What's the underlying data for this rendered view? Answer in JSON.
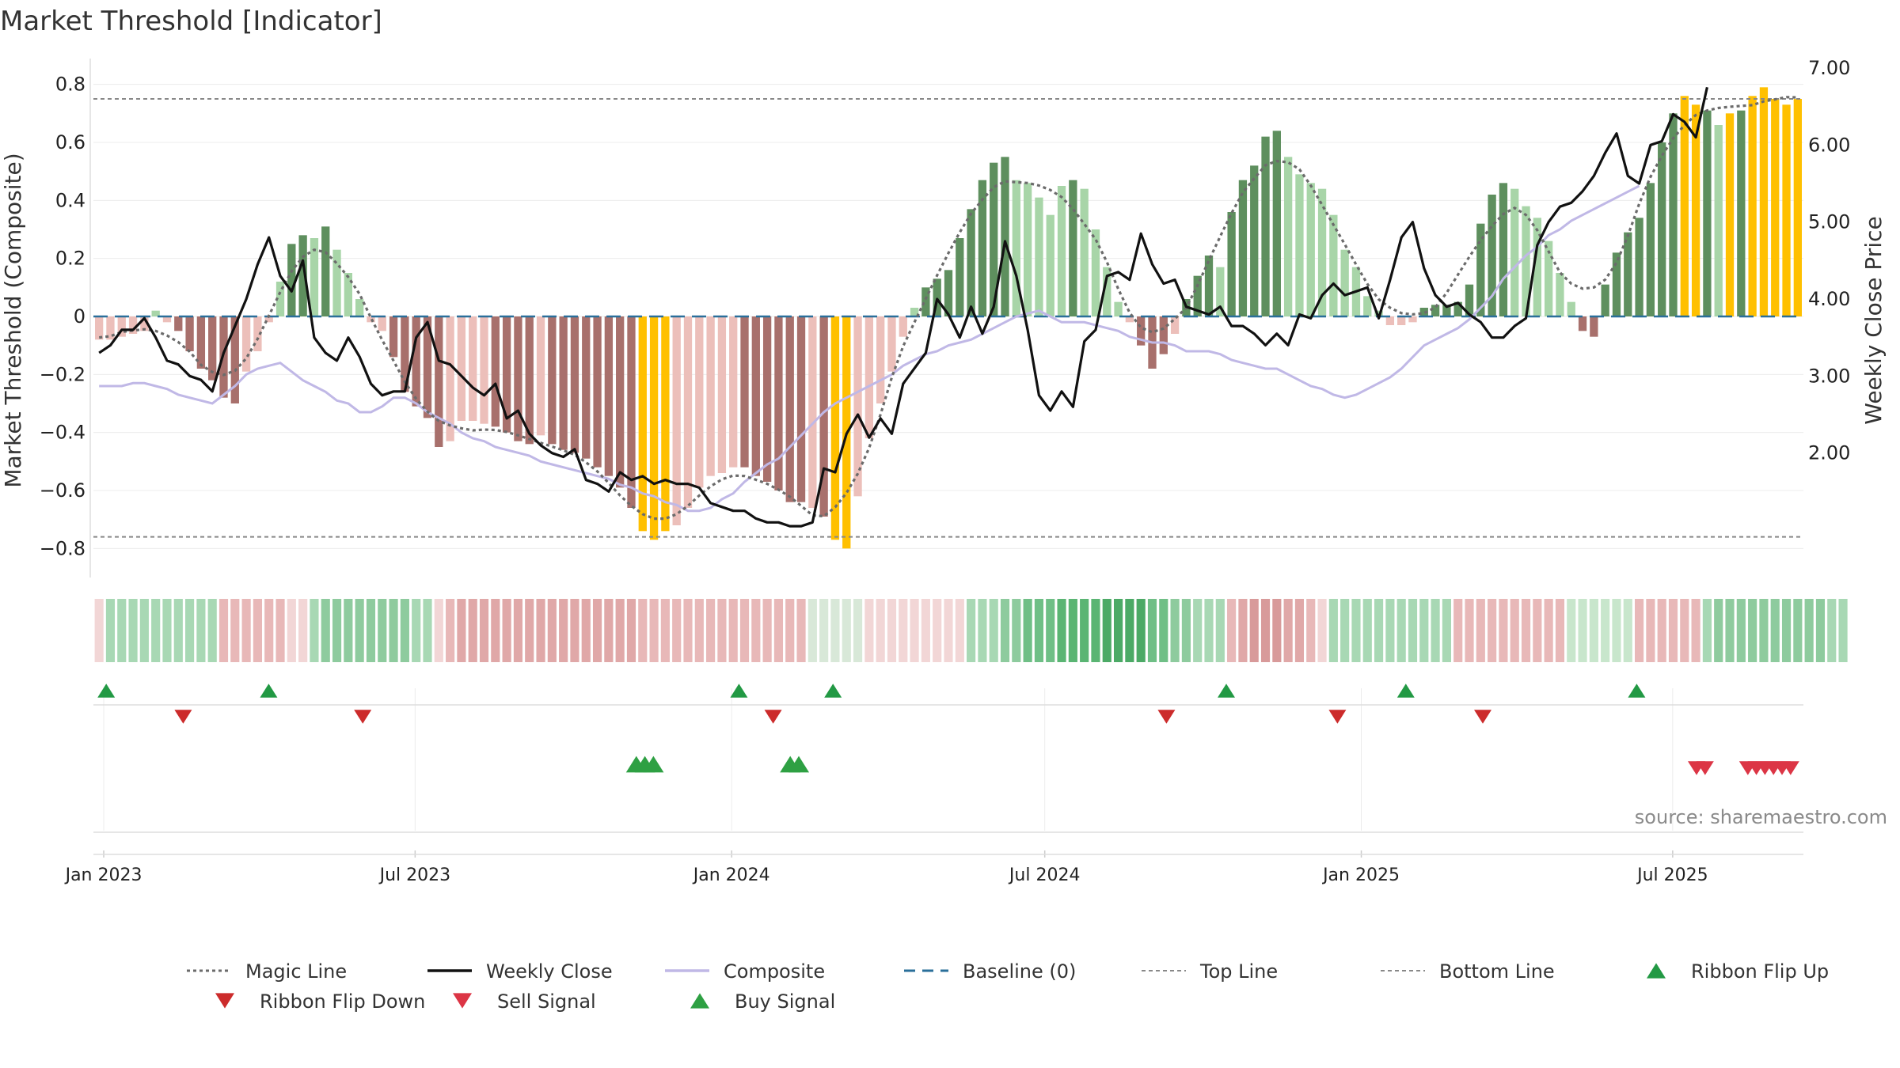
{
  "chart_data": {
    "type": "bar",
    "title": "Market Threshold [Indicator]",
    "ylabel_left": "Market Threshold (Composite)",
    "ylabel_right": "Weekly Close Price",
    "source": "source: sharemaestro.com",
    "ylim_left": [
      -0.9,
      0.9
    ],
    "ylim_right": [
      1.0,
      7.0
    ],
    "y_ticks_left": [
      0.8,
      0.6,
      0.4,
      0.2,
      0,
      -0.2,
      -0.4,
      -0.6,
      -0.8
    ],
    "y_ticks_left_labels": [
      "0.8",
      "0.6",
      "0.4",
      "0.2",
      "0",
      "−0.2",
      "−0.4",
      "−0.6",
      "−0.8"
    ],
    "y_ticks_right": [
      7.0,
      6.0,
      5.0,
      4.0,
      3.0,
      2.0
    ],
    "y_ticks_right_labels": [
      "7.00",
      "6.00",
      "5.00",
      "4.00",
      "3.00",
      "2.00"
    ],
    "x_start": "2022-12-26",
    "x_end": "2025-09-15",
    "x_ticks": [
      {
        "date": "2023-01-01",
        "label": "Jan 2023"
      },
      {
        "date": "2023-07-01",
        "label": "Jul 2023"
      },
      {
        "date": "2024-01-01",
        "label": "Jan 2024"
      },
      {
        "date": "2024-07-01",
        "label": "Jul 2024"
      },
      {
        "date": "2025-01-01",
        "label": "Jan 2025"
      },
      {
        "date": "2025-07-01",
        "label": "Jul 2025"
      }
    ],
    "top_line": 0.75,
    "bottom_line": -0.76,
    "baseline": 0,
    "grid": true,
    "legend_position": "bottom",
    "colors": {
      "pos_strong": "#5e8f5e",
      "pos_weak": "#a8d5a8",
      "neg_strong": "#a8706c",
      "neg_weak": "#ecbfba",
      "extreme": "#ffc000",
      "price": "#111111",
      "composite_line": "#c0b8e6",
      "magic_line": "#6b6b6b",
      "baseline": "#2a6f9a",
      "threshold_lines": "#888888",
      "flip_up": "#229944",
      "flip_down": "#cc2b2b",
      "buy": "#2ea043",
      "sell": "#dc3545"
    },
    "bar_values": [
      -0.08,
      -0.08,
      -0.07,
      -0.06,
      -0.05,
      0.02,
      -0.02,
      -0.05,
      -0.12,
      -0.18,
      -0.22,
      -0.28,
      -0.3,
      -0.19,
      -0.12,
      -0.02,
      0.12,
      0.25,
      0.28,
      0.27,
      0.31,
      0.23,
      0.15,
      0.06,
      -0.02,
      -0.05,
      -0.14,
      -0.26,
      -0.31,
      -0.35,
      -0.45,
      -0.43,
      -0.36,
      -0.36,
      -0.37,
      -0.38,
      -0.4,
      -0.43,
      -0.44,
      -0.41,
      -0.44,
      -0.46,
      -0.47,
      -0.49,
      -0.52,
      -0.55,
      -0.59,
      -0.66,
      -0.74,
      -0.77,
      -0.74,
      -0.72,
      -0.66,
      -0.59,
      -0.55,
      -0.54,
      -0.52,
      -0.52,
      -0.55,
      -0.57,
      -0.6,
      -0.64,
      -0.64,
      -0.66,
      -0.69,
      -0.77,
      -0.8,
      -0.62,
      -0.42,
      -0.3,
      -0.19,
      -0.07,
      0.03,
      0.1,
      0.13,
      0.16,
      0.27,
      0.37,
      0.47,
      0.53,
      0.55,
      0.47,
      0.46,
      0.41,
      0.35,
      0.45,
      0.47,
      0.44,
      0.3,
      0.17,
      0.05,
      -0.02,
      -0.1,
      -0.18,
      -0.13,
      -0.06,
      0.06,
      0.14,
      0.21,
      0.17,
      0.36,
      0.47,
      0.52,
      0.62,
      0.64,
      0.55,
      0.49,
      0.46,
      0.44,
      0.35,
      0.23,
      0.17,
      0.07,
      0.02,
      -0.03,
      -0.03,
      -0.02,
      0.03,
      0.04,
      0.04,
      0.05,
      0.11,
      0.32,
      0.42,
      0.46,
      0.44,
      0.38,
      0.34,
      0.26,
      0.15,
      0.05,
      -0.05,
      -0.07,
      0.11,
      0.22,
      0.29,
      0.34,
      0.46,
      0.6,
      0.7,
      0.76,
      0.73,
      0.71,
      0.66,
      0.7,
      0.71,
      0.76,
      0.79,
      0.75,
      0.73,
      0.75
    ],
    "bar_categories": [
      "nw",
      "nw",
      "nw",
      "nw",
      "nw",
      "pw",
      "nw",
      "ns",
      "ns",
      "ns",
      "ns",
      "ns",
      "ns",
      "nw",
      "nw",
      "nw",
      "pw",
      "ps",
      "ps",
      "pw",
      "ps",
      "pw",
      "pw",
      "pw",
      "nw",
      "nw",
      "ns",
      "ns",
      "ns",
      "ns",
      "ns",
      "nw",
      "nw",
      "nw",
      "nw",
      "ns",
      "ns",
      "ns",
      "ns",
      "nw",
      "ns",
      "ns",
      "ns",
      "ns",
      "ns",
      "ns",
      "ns",
      "ns",
      "ex",
      "ex",
      "ex",
      "nw",
      "nw",
      "nw",
      "nw",
      "nw",
      "nw",
      "ns",
      "ns",
      "ns",
      "ns",
      "ns",
      "ns",
      "nw",
      "ns",
      "ex",
      "ex",
      "nw",
      "nw",
      "nw",
      "nw",
      "nw",
      "pw",
      "ps",
      "ps",
      "ps",
      "ps",
      "ps",
      "ps",
      "ps",
      "ps",
      "pw",
      "pw",
      "pw",
      "pw",
      "pw",
      "ps",
      "pw",
      "pw",
      "pw",
      "pw",
      "nw",
      "ns",
      "ns",
      "ns",
      "nw",
      "ps",
      "ps",
      "ps",
      "pw",
      "ps",
      "ps",
      "ps",
      "ps",
      "ps",
      "pw",
      "pw",
      "pw",
      "pw",
      "pw",
      "pw",
      "pw",
      "pw",
      "pw",
      "nw",
      "nw",
      "nw",
      "ps",
      "ps",
      "ps",
      "ps",
      "ps",
      "ps",
      "ps",
      "ps",
      "pw",
      "pw",
      "pw",
      "pw",
      "pw",
      "pw",
      "ns",
      "ns",
      "ps",
      "ps",
      "ps",
      "ps",
      "ps",
      "ps",
      "ps",
      "ex",
      "ex",
      "ps",
      "pw",
      "ex",
      "ps",
      "ex",
      "ex",
      "ex",
      "ex",
      "ex"
    ],
    "weekly_close": [
      3.3,
      3.4,
      3.6,
      3.6,
      3.75,
      3.5,
      3.2,
      3.15,
      3.0,
      2.95,
      2.8,
      3.3,
      3.65,
      4.0,
      4.45,
      4.8,
      4.3,
      4.1,
      4.5,
      3.5,
      3.3,
      3.2,
      3.5,
      3.25,
      2.9,
      2.75,
      2.8,
      2.8,
      3.5,
      3.7,
      3.2,
      3.15,
      3.0,
      2.85,
      2.75,
      2.9,
      2.45,
      2.55,
      2.25,
      2.1,
      2.0,
      1.95,
      2.05,
      1.65,
      1.6,
      1.5,
      1.75,
      1.65,
      1.7,
      1.6,
      1.65,
      1.6,
      1.6,
      1.55,
      1.35,
      1.3,
      1.25,
      1.25,
      1.15,
      1.1,
      1.1,
      1.05,
      1.05,
      1.1,
      1.8,
      1.75,
      2.25,
      2.5,
      2.2,
      2.45,
      2.25,
      2.9,
      3.1,
      3.3,
      4.0,
      3.8,
      3.5,
      3.9,
      3.55,
      3.9,
      4.75,
      4.3,
      3.6,
      2.75,
      2.55,
      2.8,
      2.6,
      3.45,
      3.6,
      4.3,
      4.35,
      4.25,
      4.85,
      4.45,
      4.2,
      4.25,
      3.9,
      3.85,
      3.8,
      3.9,
      3.65,
      3.65,
      3.55,
      3.4,
      3.55,
      3.4,
      3.8,
      3.75,
      4.05,
      4.2,
      4.05,
      4.1,
      4.15,
      3.75,
      4.25,
      4.8,
      5.0,
      4.4,
      4.05,
      3.9,
      3.95,
      3.8,
      3.7,
      3.5,
      3.5,
      3.65,
      3.75,
      4.7,
      5.0,
      5.2,
      5.25,
      5.4,
      5.6,
      5.9,
      6.15,
      5.6,
      5.5,
      6.0,
      6.05,
      6.4,
      6.3,
      6.1,
      6.75
    ],
    "composite": [
      -0.24,
      -0.24,
      -0.24,
      -0.23,
      -0.23,
      -0.24,
      -0.25,
      -0.27,
      -0.28,
      -0.29,
      -0.3,
      -0.27,
      -0.24,
      -0.2,
      -0.18,
      -0.17,
      -0.16,
      -0.19,
      -0.22,
      -0.24,
      -0.26,
      -0.29,
      -0.3,
      -0.33,
      -0.33,
      -0.31,
      -0.28,
      -0.28,
      -0.3,
      -0.33,
      -0.35,
      -0.37,
      -0.4,
      -0.42,
      -0.43,
      -0.45,
      -0.46,
      -0.47,
      -0.48,
      -0.5,
      -0.51,
      -0.52,
      -0.53,
      -0.54,
      -0.55,
      -0.56,
      -0.58,
      -0.59,
      -0.61,
      -0.62,
      -0.64,
      -0.65,
      -0.67,
      -0.67,
      -0.66,
      -0.63,
      -0.61,
      -0.57,
      -0.54,
      -0.51,
      -0.49,
      -0.45,
      -0.41,
      -0.37,
      -0.33,
      -0.3,
      -0.28,
      -0.26,
      -0.24,
      -0.22,
      -0.2,
      -0.17,
      -0.15,
      -0.13,
      -0.12,
      -0.1,
      -0.09,
      -0.08,
      -0.06,
      -0.04,
      -0.02,
      0.0,
      0.01,
      0.02,
      0.0,
      -0.02,
      -0.02,
      -0.02,
      -0.03,
      -0.04,
      -0.05,
      -0.07,
      -0.08,
      -0.09,
      -0.09,
      -0.1,
      -0.12,
      -0.12,
      -0.12,
      -0.13,
      -0.15,
      -0.16,
      -0.17,
      -0.18,
      -0.18,
      -0.2,
      -0.22,
      -0.24,
      -0.25,
      -0.27,
      -0.28,
      -0.27,
      -0.25,
      -0.23,
      -0.21,
      -0.18,
      -0.14,
      -0.1,
      -0.08,
      -0.06,
      -0.04,
      -0.01,
      0.03,
      0.07,
      0.13,
      0.17,
      0.21,
      0.24,
      0.28,
      0.3,
      0.33,
      0.35,
      0.37,
      0.39,
      0.41,
      0.43,
      0.45
    ],
    "ribbon_colors": [
      "#f2d6d6",
      "#a8d8b4",
      "#a8d8b4",
      "#a8d8b4",
      "#a8d8b4",
      "#a8d8b4",
      "#a8d8b4",
      "#a8d8b4",
      "#a8d8b4",
      "#a8d8b4",
      "#a8d8b4",
      "#e8b8b8",
      "#e8b8b8",
      "#e8b8b8",
      "#e8b8b8",
      "#e8b8b8",
      "#e8b8b8",
      "#f2d6d6",
      "#f2d6d6",
      "#a8d8b4",
      "#8ecb9e",
      "#8ecb9e",
      "#8ecb9e",
      "#8ecb9e",
      "#8ecb9e",
      "#8ecb9e",
      "#8ecb9e",
      "#8ecb9e",
      "#a8d8b4",
      "#a8d8b4",
      "#f2d6d6",
      "#e8b8b8",
      "#e0a8a8",
      "#e0a8a8",
      "#e0a8a8",
      "#e0a8a8",
      "#e0a8a8",
      "#e0a8a8",
      "#e0a8a8",
      "#e0a8a8",
      "#e0a8a8",
      "#e0a8a8",
      "#e0a8a8",
      "#e0a8a8",
      "#e0a8a8",
      "#e0a8a8",
      "#e0a8a8",
      "#e0a8a8",
      "#e8b8b8",
      "#e8b8b8",
      "#e8b8b8",
      "#e8b8b8",
      "#e8b8b8",
      "#e8b8b8",
      "#e8b8b8",
      "#e8b8b8",
      "#e8b8b8",
      "#e8b8b8",
      "#e8b8b8",
      "#e8b8b8",
      "#e8b8b8",
      "#e8b8b8",
      "#e8b8b8",
      "#d8e8d8",
      "#d8e8d8",
      "#d8e8d8",
      "#d8e8d8",
      "#d8e8d8",
      "#f2d6d6",
      "#f2d6d6",
      "#f2d6d6",
      "#f2d6d6",
      "#f2d6d6",
      "#f2d6d6",
      "#f2d6d6",
      "#f2d6d6",
      "#f2d6d6",
      "#a8d8b4",
      "#a8d8b4",
      "#a8d8b4",
      "#8ecb9e",
      "#8ecb9e",
      "#6fbf86",
      "#6fbf86",
      "#6fbf86",
      "#5ab573",
      "#5ab573",
      "#5ab573",
      "#5ab573",
      "#4caa66",
      "#4caa66",
      "#4caa66",
      "#4caa66",
      "#6fbf86",
      "#6fbf86",
      "#8ecb9e",
      "#8ecb9e",
      "#a8d8b4",
      "#a8d8b4",
      "#a8d8b4",
      "#e8b8b8",
      "#e0a8a8",
      "#d89a9a",
      "#d89a9a",
      "#d89a9a",
      "#e0a8a8",
      "#e0a8a8",
      "#e8b8b8",
      "#f2d6d6",
      "#a8d8b4",
      "#a8d8b4",
      "#a8d8b4",
      "#a8d8b4",
      "#a8d8b4",
      "#a8d8b4",
      "#a8d8b4",
      "#a8d8b4",
      "#a8d8b4",
      "#a8d8b4",
      "#a8d8b4",
      "#e8b8b8",
      "#e8b8b8",
      "#e8b8b8",
      "#e8b8b8",
      "#e8b8b8",
      "#e8b8b8",
      "#e8b8b8",
      "#e8b8b8",
      "#e8b8b8",
      "#e8b8b8",
      "#c8e6cc",
      "#c8e6cc",
      "#c8e6cc",
      "#c8e6cc",
      "#c8e6cc",
      "#c8e6cc",
      "#e8b8b8",
      "#e8b8b8",
      "#e8b8b8",
      "#e8b8b8",
      "#e8b8b8",
      "#e8b8b8",
      "#a8d8b4",
      "#8ecb9e",
      "#8ecb9e",
      "#8ecb9e",
      "#8ecb9e",
      "#8ecb9e",
      "#8ecb9e",
      "#8ecb9e",
      "#8ecb9e",
      "#8ecb9e",
      "#8ecb9e",
      "#a8d8b4",
      "#a8d8b4"
    ],
    "ribbon_flip_up": [
      1,
      20,
      75,
      86,
      132,
      153,
      180
    ],
    "ribbon_flip_down": [
      10,
      31,
      79,
      125,
      145,
      162
    ],
    "buy_signals": [
      63,
      64,
      65,
      81,
      82
    ],
    "sell_signals": [
      187,
      188,
      193,
      194,
      195,
      196,
      197,
      198
    ],
    "legend": [
      {
        "label": "Magic Line",
        "kind": "dotted",
        "color": "#6b6b6b"
      },
      {
        "label": "Weekly Close",
        "kind": "solid",
        "color": "#111111"
      },
      {
        "label": "Composite",
        "kind": "solid",
        "color": "#c0b8e6"
      },
      {
        "label": "Baseline (0)",
        "kind": "dashed",
        "color": "#2a6f9a"
      },
      {
        "label": "Top Line",
        "kind": "dashed-thin",
        "color": "#888888"
      },
      {
        "label": "Bottom Line",
        "kind": "dashed-thin",
        "color": "#888888"
      },
      {
        "label": "Ribbon Flip Up",
        "kind": "tri-up",
        "color": "#229944"
      },
      {
        "label": "Ribbon Flip Down",
        "kind": "tri-down",
        "color": "#cc2b2b"
      },
      {
        "label": "Sell Signal",
        "kind": "tri-down",
        "color": "#dc3545"
      },
      {
        "label": "Buy Signal",
        "kind": "tri-up",
        "color": "#2ea043"
      }
    ]
  }
}
